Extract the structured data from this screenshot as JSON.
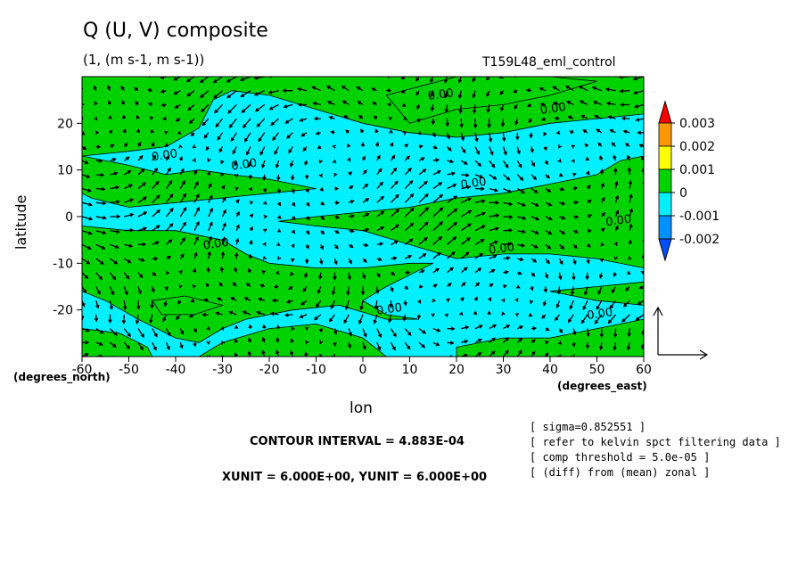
{
  "header": {
    "title": "Q (U, V) composite",
    "subtitle": "(1, (m s-1, m s-1))",
    "run": "T159L48_eml_control"
  },
  "footer": {
    "contour_interval": "CONTOUR INTERVAL = 4.883E-04",
    "units": "XUNIT = 6.000E+00, YUNIT = 6.000E+00",
    "notes": [
      "[ sigma=0.852551 ]",
      "[ refer to kelvin spct filtering data ]",
      "[ comp threshold = 5.0e-05 ]",
      "[ (diff) from (mean) zonal ]"
    ]
  },
  "colors": {
    "cyan": "#00f0ff",
    "green": "#00d200",
    "blue": "#0090ff",
    "darkblue": "#0050ff",
    "yellow": "#ffff00",
    "orange": "#ff9900",
    "red": "#ff0000",
    "arrow": "#000000"
  },
  "chart_data": {
    "type": "heatmap",
    "title": "Q (U, V) composite",
    "subtitle": "(1, (m s-1, m s-1))",
    "xlabel": "lon",
    "ylabel": "latitude",
    "xunit_label": "(degrees_east)",
    "yunit_label": "(degrees_north)",
    "xlim": [
      -60,
      60
    ],
    "ylim": [
      -30,
      30
    ],
    "x_ticks": [
      -60,
      -50,
      -40,
      -30,
      -20,
      -10,
      0,
      10,
      20,
      30,
      40,
      50,
      60
    ],
    "x_tick_labels": [
      "-60",
      "-50",
      "-40",
      "-30",
      "-20",
      "-10",
      "0",
      "10",
      "20",
      "30",
      "40",
      "50",
      "60"
    ],
    "y_ticks": [
      -20,
      -10,
      0,
      10,
      20
    ],
    "y_tick_labels": [
      "-20",
      "-10",
      "0",
      "10",
      "20"
    ],
    "colorbar": {
      "levels": [
        0.003,
        0.002,
        0.001,
        0,
        -0.001,
        -0.002
      ],
      "labels": [
        "0.003",
        "0.002",
        "0.001",
        "0",
        "-0.001",
        "-0.002"
      ],
      "colors": [
        "#ff0000",
        "#ff9900",
        "#ffff00",
        "#00d200",
        "#00f0ff",
        "#0090ff",
        "#0050ff"
      ]
    },
    "contour_labels": [
      {
        "lon": -45,
        "lat": 12,
        "text": "0.00"
      },
      {
        "lon": -28,
        "lat": 10,
        "text": "0.00"
      },
      {
        "lon": 21,
        "lat": 6,
        "text": "0.00"
      },
      {
        "lon": 14,
        "lat": 25,
        "text": "0.00"
      },
      {
        "lon": 38,
        "lat": 22,
        "text": "0.00"
      },
      {
        "lon": 52,
        "lat": -2,
        "text": "0.00"
      },
      {
        "lon": 27,
        "lat": -8,
        "text": "0.00"
      },
      {
        "lon": -34,
        "lat": -7,
        "text": "0.00"
      },
      {
        "lon": 3,
        "lat": -21,
        "text": "0.00"
      },
      {
        "lon": 48,
        "lat": -22,
        "text": "0.00"
      }
    ],
    "wind_vectors": {
      "description": "U,V vectors on 3-degree grid",
      "reference_arrow": {
        "x_unit": 6.0,
        "y_unit": 6.0
      }
    }
  }
}
